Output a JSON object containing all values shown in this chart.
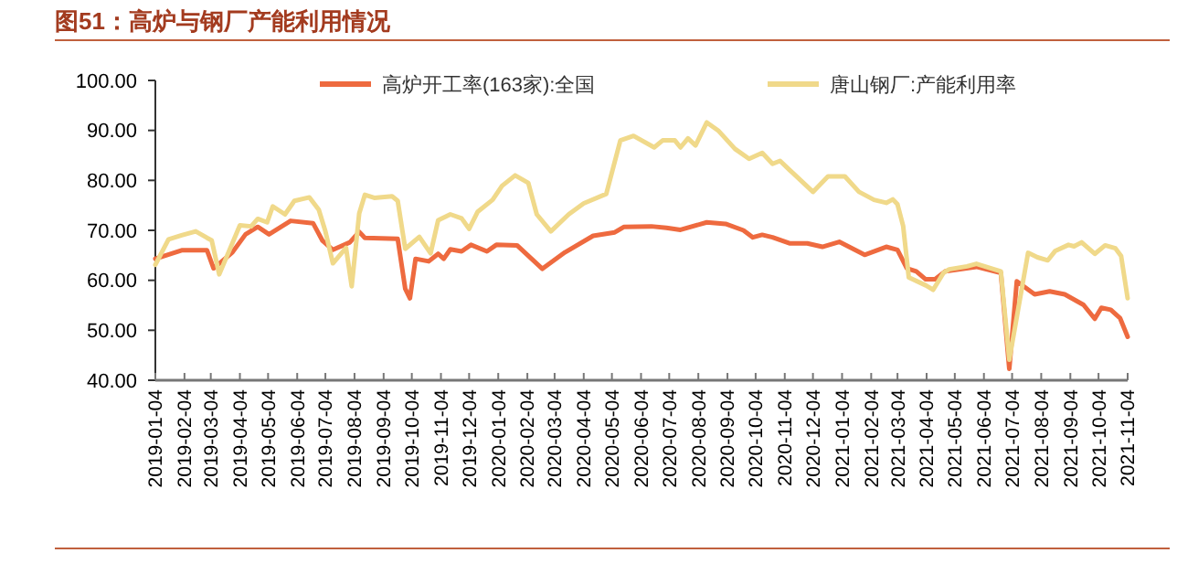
{
  "chart_data": {
    "type": "line",
    "title": "图51：高炉与钢厂产能利用情况",
    "xlim": [
      "2019-01-04",
      "2021-11-04"
    ],
    "xticks": [
      "2019-01-04",
      "2019-02-04",
      "2019-03-04",
      "2019-04-04",
      "2019-05-04",
      "2019-06-04",
      "2019-07-04",
      "2019-08-04",
      "2019-09-04",
      "2019-10-04",
      "2019-11-04",
      "2019-12-04",
      "2020-01-04",
      "2020-02-04",
      "2020-03-04",
      "2020-04-04",
      "2020-05-04",
      "2020-06-04",
      "2020-07-04",
      "2020-08-04",
      "2020-09-04",
      "2020-10-04",
      "2020-11-04",
      "2020-12-04",
      "2021-01-04",
      "2021-02-04",
      "2021-03-04",
      "2021-04-04",
      "2021-05-04",
      "2021-06-04",
      "2021-07-04",
      "2021-08-04",
      "2021-09-04",
      "2021-10-04",
      "2021-11-04"
    ],
    "ylim": [
      40,
      100
    ],
    "yticks": [
      {
        "value": 40,
        "label": "40.00"
      },
      {
        "value": 50,
        "label": "50.00"
      },
      {
        "value": 60,
        "label": "60.00"
      },
      {
        "value": 70,
        "label": "70.00"
      },
      {
        "value": 80,
        "label": "80.00"
      },
      {
        "value": 90,
        "label": "90.00"
      },
      {
        "value": 100,
        "label": "100.00"
      }
    ],
    "grid": false,
    "legend": "top",
    "marker": "none",
    "line_style": "solid",
    "series": [
      {
        "name": "高炉开工率(163家):全国",
        "color": "#ee6a3f",
        "x": [
          "2019-01-04",
          "2019-02-01",
          "2019-02-28",
          "2019-03-07",
          "2019-03-27",
          "2019-04-10",
          "2019-04-23",
          "2019-05-05",
          "2019-05-28",
          "2019-06-21",
          "2019-07-01",
          "2019-07-12",
          "2019-07-30",
          "2019-08-09",
          "2019-08-15",
          "2019-09-19",
          "2019-09-27",
          "2019-10-02",
          "2019-10-08",
          "2019-10-22",
          "2019-11-01",
          "2019-11-07",
          "2019-11-14",
          "2019-11-26",
          "2019-12-06",
          "2019-12-23",
          "2020-01-02",
          "2020-01-24",
          "2020-02-20",
          "2020-03-15",
          "2020-04-14",
          "2020-05-07",
          "2020-05-17",
          "2020-06-15",
          "2020-07-01",
          "2020-07-16",
          "2020-08-13",
          "2020-09-02",
          "2020-09-21",
          "2020-10-01",
          "2020-10-11",
          "2020-10-22",
          "2020-11-09",
          "2020-11-28",
          "2020-12-14",
          "2021-01-01",
          "2021-01-28",
          "2021-02-20",
          "2021-03-04",
          "2021-03-14",
          "2021-03-24",
          "2021-04-03",
          "2021-04-13",
          "2021-04-24",
          "2021-05-27",
          "2021-06-22",
          "2021-07-01",
          "2021-07-09",
          "2021-07-28",
          "2021-08-13",
          "2021-08-29",
          "2021-09-18",
          "2021-09-30",
          "2021-10-07",
          "2021-10-17",
          "2021-10-27",
          "2021-11-04"
        ],
        "values": [
          64.3,
          66,
          66,
          62.4,
          65.6,
          69.2,
          70.7,
          69.2,
          71.9,
          71.4,
          67.9,
          66.1,
          67.6,
          69.7,
          68.5,
          68.3,
          58.3,
          56.4,
          64.3,
          63.8,
          65.3,
          64.3,
          66.2,
          65.8,
          67.1,
          65.8,
          67.1,
          67,
          62.3,
          65.6,
          68.9,
          69.6,
          70.7,
          70.8,
          70.5,
          70.1,
          71.6,
          71.3,
          70,
          68.6,
          69.1,
          68.6,
          67.4,
          67.4,
          66.7,
          67.7,
          65.1,
          66.7,
          66.1,
          62.4,
          61.8,
          60.2,
          60.2,
          61.8,
          62.7,
          61.5,
          42.3,
          59.8,
          57.2,
          57.8,
          57.2,
          55.1,
          52.3,
          54.5,
          54.1,
          52.4,
          48.7
        ]
      },
      {
        "name": "唐山钢厂:产能利用率",
        "color": "#f0d98a",
        "x": [
          "2019-01-04",
          "2019-01-18",
          "2019-02-01",
          "2019-02-16",
          "2019-02-28",
          "2019-03-05",
          "2019-03-13",
          "2019-04-04",
          "2019-04-16",
          "2019-04-23",
          "2019-05-03",
          "2019-05-09",
          "2019-05-22",
          "2019-06-01",
          "2019-06-17",
          "2019-06-27",
          "2019-07-04",
          "2019-07-12",
          "2019-07-26",
          "2019-08-01",
          "2019-08-09",
          "2019-08-15",
          "2019-08-25",
          "2019-09-13",
          "2019-09-19",
          "2019-09-27",
          "2019-10-12",
          "2019-10-24",
          "2019-11-01",
          "2019-11-14",
          "2019-11-26",
          "2019-12-04",
          "2019-12-13",
          "2019-12-29",
          "2020-01-08",
          "2020-01-22",
          "2020-02-05",
          "2020-02-14",
          "2020-02-29",
          "2020-03-19",
          "2020-04-04",
          "2020-04-28",
          "2020-05-13",
          "2020-05-27",
          "2020-06-18",
          "2020-06-27",
          "2020-07-10",
          "2020-07-16",
          "2020-07-24",
          "2020-08-01",
          "2020-08-13",
          "2020-08-25",
          "2020-09-12",
          "2020-09-27",
          "2020-10-11",
          "2020-10-22",
          "2020-10-30",
          "2020-11-09",
          "2020-11-13",
          "2020-12-04",
          "2020-12-20",
          "2021-01-07",
          "2021-01-22",
          "2021-02-07",
          "2021-02-20",
          "2021-02-27",
          "2021-03-04",
          "2021-03-10",
          "2021-03-16",
          "2021-04-03",
          "2021-04-11",
          "2021-04-22",
          "2021-04-28",
          "2021-05-17",
          "2021-05-27",
          "2021-06-22",
          "2021-07-01",
          "2021-07-21",
          "2021-07-31",
          "2021-08-11",
          "2021-08-19",
          "2021-09-02",
          "2021-09-08",
          "2021-09-16",
          "2021-09-30",
          "2021-10-11",
          "2021-10-22",
          "2021-10-28",
          "2021-11-04"
        ],
        "values": [
          63.1,
          68.2,
          69,
          69.8,
          68.5,
          68,
          61.2,
          71,
          70.8,
          72.3,
          71.6,
          74.8,
          73.2,
          75.9,
          76.6,
          74.1,
          69.8,
          63.4,
          66.5,
          58.8,
          73.4,
          77.1,
          76.5,
          76.8,
          75.9,
          66.3,
          68.7,
          65.4,
          72,
          73.2,
          72.4,
          70.3,
          73.7,
          76.1,
          78.9,
          81,
          79.5,
          73.2,
          69.8,
          73.2,
          75.4,
          77.3,
          88,
          88.9,
          86.6,
          88,
          88,
          86.6,
          88.4,
          87,
          91.6,
          90,
          86.3,
          84.3,
          85.5,
          83.3,
          83.9,
          82.1,
          81.4,
          77.7,
          80.8,
          80.8,
          77.7,
          76.1,
          75.5,
          76.2,
          75.2,
          70.9,
          60.6,
          59,
          58.1,
          61.5,
          62.2,
          62.8,
          63.3,
          61.8,
          44.1,
          65.5,
          64.6,
          64,
          65.9,
          67.1,
          66.8,
          67.6,
          65.3,
          67,
          66.4,
          64.9,
          56.4
        ]
      }
    ]
  }
}
